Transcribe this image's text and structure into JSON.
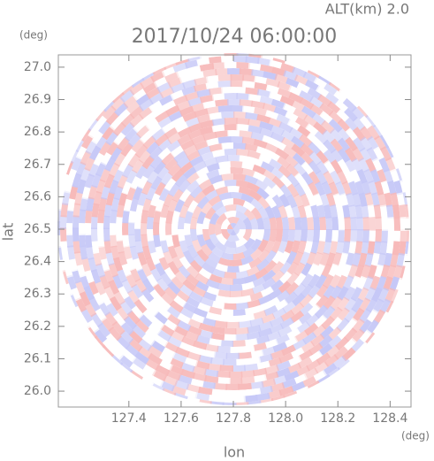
{
  "chart_data": {
    "type": "radar-ppi",
    "title": "2017/10/24 06:00:00",
    "annotation": "ALT(km) 2.0",
    "x_label": "lon",
    "y_label": "lat",
    "x_unit": "(deg)",
    "y_unit": "(deg)",
    "xlim": [
      127.13,
      128.48
    ],
    "ylim": [
      25.951,
      27.038
    ],
    "xticks": [
      127.4,
      127.6,
      127.8,
      {
        "value": 128,
        "label": "128.0"
      },
      128.2,
      128.4
    ],
    "yticks": [
      {
        "value": 26,
        "label": "26.0"
      },
      26.1,
      26.2,
      26.3,
      26.4,
      26.5,
      26.6,
      26.7,
      26.8,
      26.9,
      {
        "value": 27,
        "label": "27.0"
      }
    ],
    "colors": [
      "#f7b9b9",
      "#c6c8f7",
      "#ffffff"
    ]
  }
}
